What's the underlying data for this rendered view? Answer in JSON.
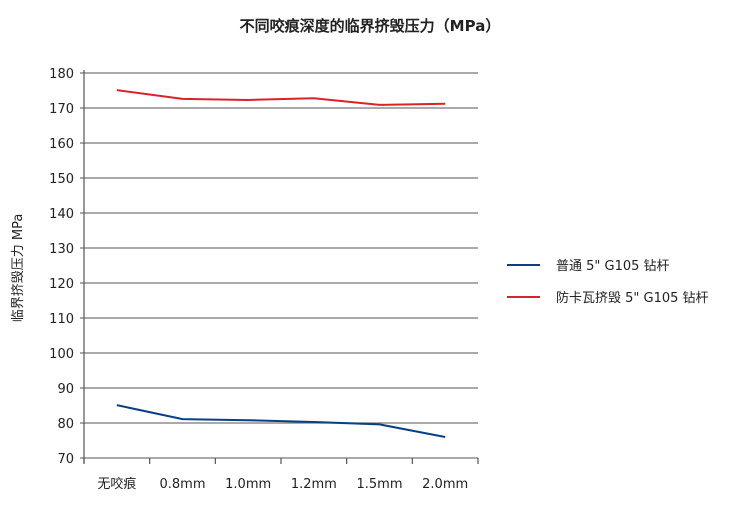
{
  "chart_data": {
    "type": "line",
    "title": "不同咬痕深度的临界挤毁压力（MPa）",
    "xlabel": "",
    "ylabel": "临界挤毁压力 MPa",
    "categories": [
      "无咬痕",
      "0.8mm",
      "1.0mm",
      "1.2mm",
      "1.5mm",
      "2.0mm"
    ],
    "ylim": [
      70,
      180
    ],
    "yticks": [
      70,
      80,
      90,
      100,
      110,
      120,
      130,
      140,
      150,
      160,
      170,
      180
    ],
    "grid": "horizontal",
    "legend": "right",
    "series": [
      {
        "name": "普通 5\" G105 钻杆",
        "color": "#0a3f85",
        "values": [
          85.1,
          81.1,
          80.8,
          80.3,
          79.6,
          76.0
        ]
      },
      {
        "name": "防卡瓦挤毁 5\" G105 钻杆",
        "color": "#d9232b",
        "values": [
          175.1,
          172.6,
          172.3,
          172.8,
          170.9,
          171.2
        ]
      }
    ]
  }
}
